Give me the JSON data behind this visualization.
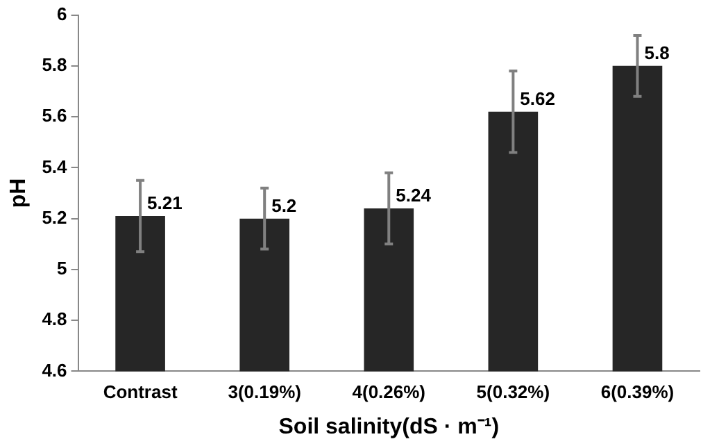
{
  "chart_data": {
    "type": "bar",
    "xlabel": "Soil salinity(dS · m⁻¹)",
    "ylabel": "pH",
    "categories": [
      "Contrast",
      "3(0.19%)",
      "4(0.26%)",
      "5(0.32%)",
      "6(0.39%)"
    ],
    "values": [
      5.21,
      5.2,
      5.24,
      5.62,
      5.8
    ],
    "color": "#262626",
    "errors": [
      0.14,
      0.12,
      0.14,
      0.16,
      0.12
    ],
    "ylim": [
      4.6,
      6
    ],
    "yticks": [
      4.6,
      4.8,
      5,
      5.2,
      5.4,
      5.6,
      5.8,
      6
    ],
    "grid": false,
    "data_labels": true
  }
}
